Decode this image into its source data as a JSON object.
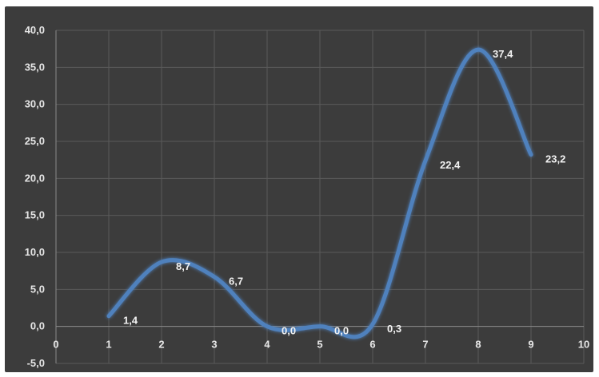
{
  "chart_data": {
    "type": "line",
    "smooth": true,
    "title": "",
    "xlabel": "",
    "ylabel": "",
    "xlim": [
      0,
      10
    ],
    "ylim": [
      -5,
      40
    ],
    "x_ticks": [
      "0",
      "1",
      "2",
      "3",
      "4",
      "5",
      "6",
      "7",
      "8",
      "9",
      "10"
    ],
    "y_ticks": [
      "-5,0",
      "0,0",
      "5,0",
      "10,0",
      "15,0",
      "20,0",
      "25,0",
      "30,0",
      "35,0",
      "40,0"
    ],
    "grid": true,
    "legend": "none",
    "series": [
      {
        "x": [
          1,
          2,
          3,
          4,
          5,
          6,
          7,
          8,
          9
        ],
        "values": [
          1.4,
          8.7,
          6.7,
          0.0,
          0.0,
          0.3,
          22.4,
          37.4,
          23.2
        ],
        "data_labels": [
          "1,4",
          "8,7",
          "6,7",
          "0,0",
          "0,0",
          "0,3",
          "22,4",
          "37,4",
          "23,2"
        ]
      }
    ],
    "colors": {
      "background": "#3c3c3c",
      "line": "#4f81bd",
      "grid": "#5a5a5a",
      "text": "#e6e6e6"
    }
  }
}
